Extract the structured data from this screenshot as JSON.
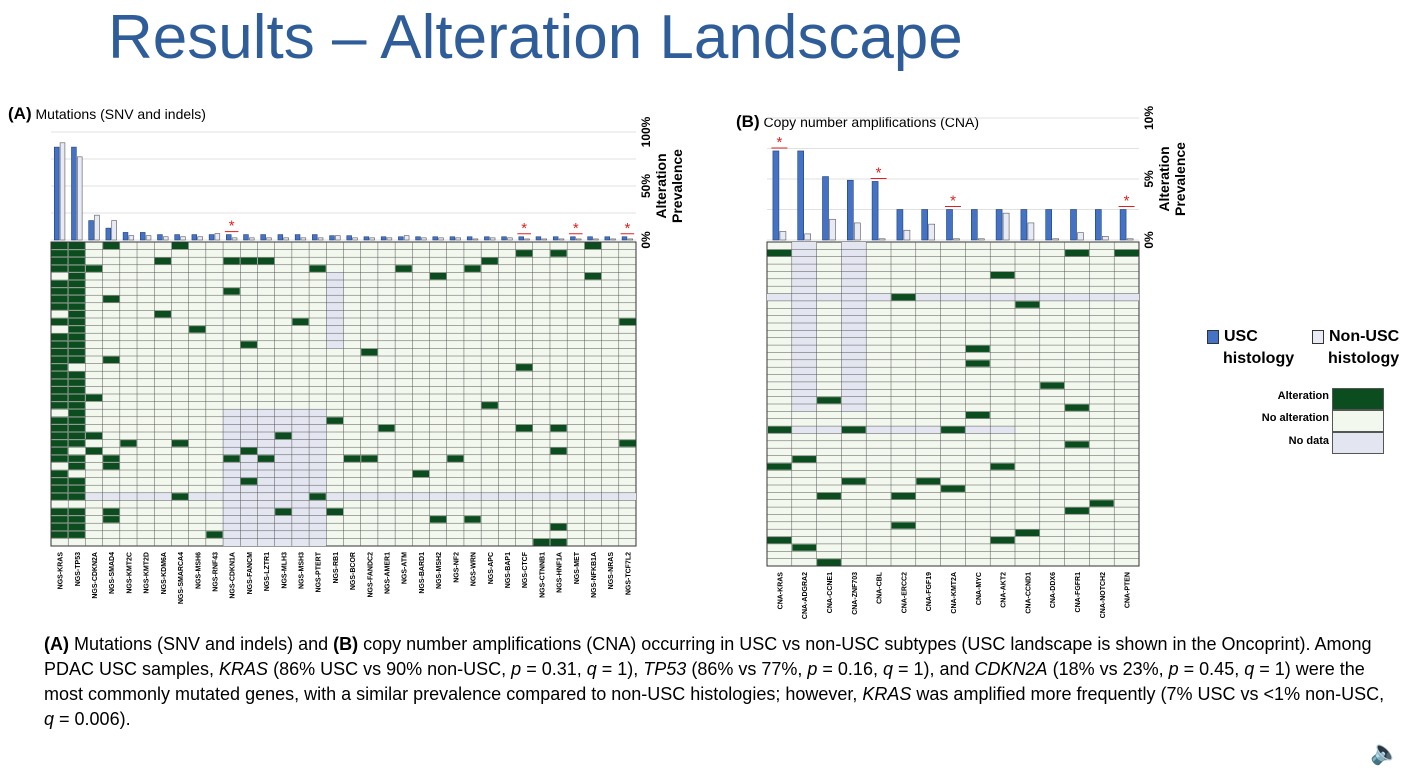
{
  "title": "Results – Alteration Landscape",
  "panelA": {
    "letter": "(A)",
    "label": "Mutations (SNV and indels)",
    "axis_ticks": [
      "100%",
      "50%",
      "0%"
    ],
    "axis_title_1": "Alteration",
    "axis_title_2": "Prevalence"
  },
  "panelB": {
    "letter": "(B)",
    "label": "Copy number amplifications (CNA)",
    "axis_ticks": [
      "10%",
      "5%",
      "0%"
    ],
    "axis_title_1": "Alteration",
    "axis_title_2": "Prevalence"
  },
  "legend": {
    "usc_1": "USC",
    "usc_2": "histology",
    "nonusc_1": "Non-USC",
    "nonusc_2": "histology",
    "alteration": "Alteration",
    "no_alteration": "No alteration",
    "no_data": "No data"
  },
  "colors": {
    "usc": "#4472c4",
    "non_usc": "#e8eaf6",
    "alteration": "#0b4d1e",
    "no_alteration": "#f3f8ee",
    "no_data": "#e3e5f0",
    "star": "#e02020",
    "title": "#2e5d9a"
  },
  "caption": {
    "t1": "(A)",
    "t2": " Mutations (SNV and indels) and ",
    "t3": "(B)",
    "t4": " copy number amplifications (CNA) occurring in USC vs non-USC subtypes (USC landscape is shown in the Oncoprint). Among PDAC USC samples, ",
    "t5": "KRAS",
    "t6": " (86% USC vs 90% non-USC, ",
    "t7": "p",
    "t8": " = 0.31, ",
    "t9": "q",
    "t10": " = 1), ",
    "t11": "TP53",
    "t12": " (86% vs 77%, ",
    "t13": "p",
    "t14": " = 0.16, ",
    "t15": "q",
    "t16": " = 1), and ",
    "t17": "CDKN2A",
    "t18": " (18% vs 23%, ",
    "t19": "p",
    "t20": " = 0.45, ",
    "t21": "q",
    "t22": " = 1) were the most commonly mutated genes, with a similar prevalence compared to non-USC histologies; however, ",
    "t23": "KRAS",
    "t24": " was amplified more frequently (7% USC vs <1% non-USC, ",
    "t25": "q",
    "t26": " = 0.006)."
  },
  "chart_data": [
    {
      "type": "bar",
      "panel": "A",
      "ylim": [
        0,
        100
      ],
      "categories": [
        "NGS-KRAS",
        "NGS-TP53",
        "NGS-CDKN2A",
        "NGS-SMAD4",
        "NGS-KMT2C",
        "NGS-KMT2D",
        "NGS-KDM6A",
        "NGS-SMARCA4",
        "NGS-MSH6",
        "NGS-RNF43",
        "NGS-CDKN1A",
        "NGS-FANCM",
        "NGS-LZTR1",
        "NGS-MLH3",
        "NGS-MSH3",
        "NGS-PTERT",
        "NGS-RB1",
        "NGS-BCOR",
        "NGS-FANDC2",
        "NGS-AMER1",
        "NGS-ATM",
        "NGS-BARD1",
        "NGS-MSH2",
        "NGS-NF2",
        "NGS-WRN",
        "NGS-APC",
        "NGS-BAP1",
        "NGS-CTCF",
        "NGS-CTNNB1",
        "NGS-HNF1A",
        "NGS-MET",
        "NGS-NFKB1A",
        "NGS-NRAS",
        "NGS-TCF7L2"
      ],
      "series": [
        {
          "name": "USC",
          "values": [
            86,
            86,
            18,
            11,
            7,
            7,
            5,
            5,
            5,
            5,
            5,
            5,
            5,
            5,
            5,
            5,
            4,
            4,
            3,
            3,
            3,
            3,
            3,
            3,
            3,
            3,
            3,
            3,
            3,
            3,
            3,
            3,
            3,
            3
          ]
        },
        {
          "name": "Non-USC",
          "values": [
            90,
            77,
            23,
            18,
            4,
            4,
            3,
            3,
            3,
            6,
            2,
            2,
            2,
            2,
            2,
            2,
            4,
            2,
            2,
            2,
            4,
            2,
            2,
            2,
            1,
            2,
            2,
            1,
            1,
            1,
            1,
            1,
            1,
            1
          ]
        }
      ],
      "significant": [
        "NGS-CDKN1A",
        "NGS-CTCF",
        "NGS-MET",
        "NGS-TCF7L2"
      ]
    },
    {
      "type": "bar",
      "panel": "B",
      "ylim": [
        0,
        10
      ],
      "categories": [
        "CNA-KRAS",
        "CNA-ADGRA2",
        "CNA-CCNE1",
        "CNA-ZNF703",
        "CNA-CBL",
        "CNA-ERCC2",
        "CNA-FGF19",
        "CNA-KMT2A",
        "CNA-MYC",
        "CNA-AKT2",
        "CNA-CCND1",
        "CNA-DDX6",
        "CNA-FGFR1",
        "CNA-NOTCH2",
        "CNA-PTEN"
      ],
      "series": [
        {
          "name": "USC",
          "values": [
            7.3,
            7.3,
            5.2,
            4.9,
            4.8,
            2.5,
            2.5,
            2.5,
            2.5,
            2.5,
            2.5,
            2.5,
            2.5,
            2.5,
            2.5
          ]
        },
        {
          "name": "Non-USC",
          "values": [
            0.7,
            0.5,
            1.7,
            1.4,
            0.1,
            0.8,
            1.3,
            0.1,
            0.1,
            2.2,
            1.4,
            0.1,
            0.6,
            0.3,
            0.1
          ]
        }
      ],
      "significant": [
        "CNA-KRAS",
        "CNA-CBL",
        "CNA-KMT2A",
        "CNA-PTEN"
      ]
    }
  ]
}
